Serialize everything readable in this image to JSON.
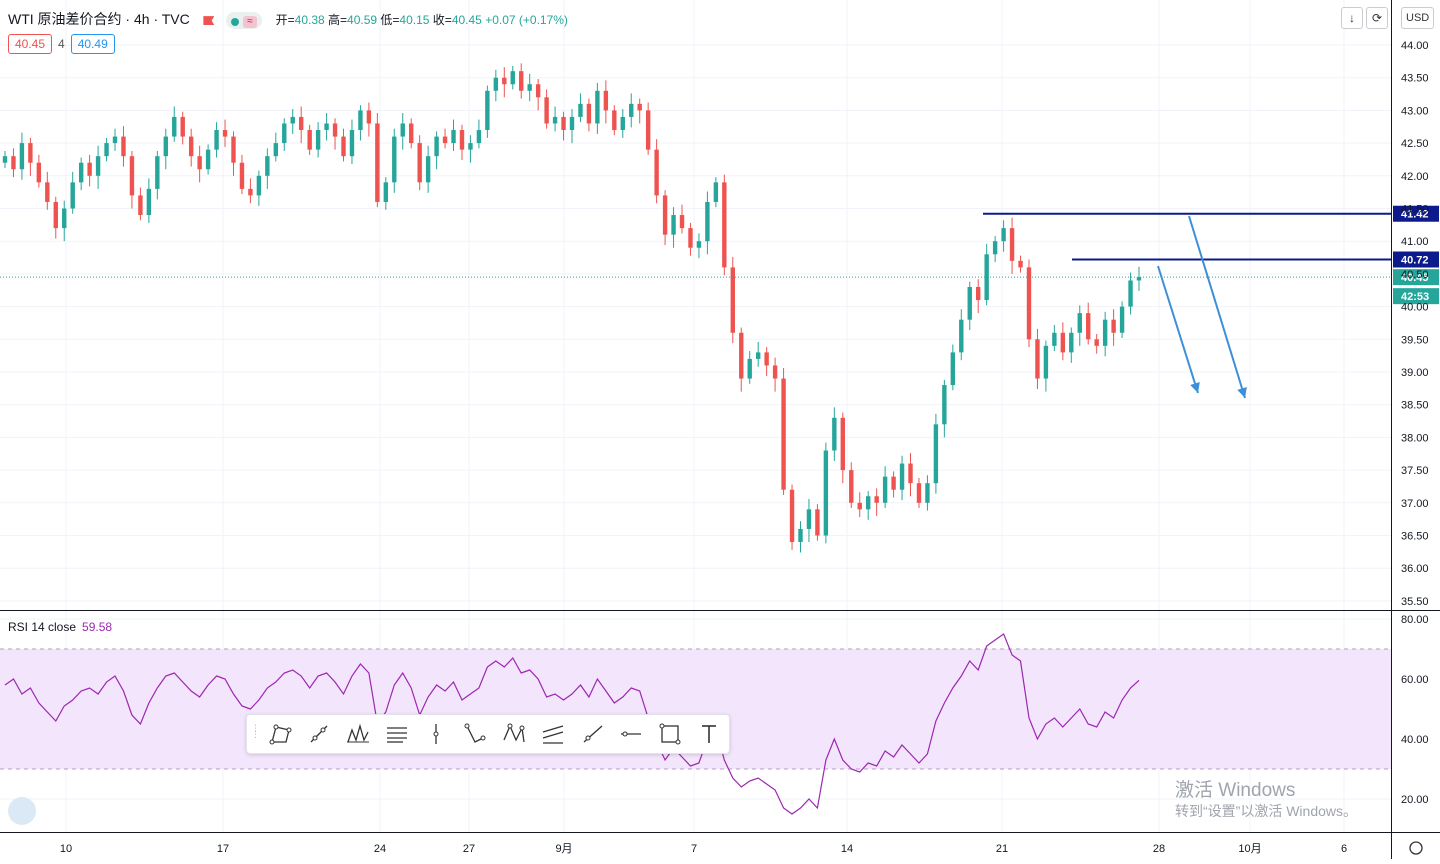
{
  "header": {
    "symbol": "WTI 原油差价合约 · 4h · TVC",
    "ohlc_open_label": "开=",
    "ohlc_open": "40.38",
    "ohlc_high_label": "高=",
    "ohlc_high": "40.59",
    "ohlc_low_label": "低=",
    "ohlc_low": "40.15",
    "ohlc_close_label": "收=",
    "ohlc_close": "40.45",
    "change": "+0.07 (+0.17%)"
  },
  "quote": {
    "bid": "40.45",
    "spread": "4",
    "ask": "40.49"
  },
  "top_buttons": {
    "down_arrow": "↓",
    "refresh": "⟳",
    "currency": "USD"
  },
  "rsi": {
    "label": "RSI 14 close",
    "value": "59.58"
  },
  "watermark": {
    "line1": "激活 Windows",
    "line2": "转到“设置”以激活 Windows。"
  },
  "tools": [
    "triangle-pattern-icon",
    "trend-line-icon",
    "pitchfork-pattern-icon",
    "fib-retracement-icon",
    "vertical-line-icon",
    "abcd-pattern-icon",
    "xabcd-pattern-icon",
    "parallel-channel-icon",
    "ray-line-icon",
    "horizontal-line-icon",
    "rectangle-icon",
    "text-tool-icon"
  ],
  "chart_data": [
    {
      "type": "candlestick",
      "title": "WTI 原油差价合约 · 4h · TVC",
      "ylim": [
        35.4,
        44.2
      ],
      "y_ticks": [
        "44.00",
        "43.50",
        "43.00",
        "42.50",
        "42.00",
        "41.50",
        "41.00",
        "40.50",
        "40.00",
        "39.50",
        "39.00",
        "38.50",
        "38.00",
        "37.50",
        "37.00",
        "36.50",
        "36.00",
        "35.50"
      ],
      "x_ticks": [
        "10",
        "17",
        "24",
        "27",
        "9月",
        "7",
        "14",
        "21",
        "28",
        "10月",
        "6"
      ],
      "closes": [
        42.3,
        42.1,
        42.5,
        42.2,
        41.9,
        41.6,
        41.2,
        41.5,
        41.9,
        42.2,
        42.0,
        42.3,
        42.5,
        42.6,
        42.3,
        41.7,
        41.4,
        41.8,
        42.3,
        42.6,
        42.9,
        42.6,
        42.3,
        42.1,
        42.4,
        42.7,
        42.6,
        42.2,
        41.8,
        41.7,
        42.0,
        42.3,
        42.5,
        42.8,
        42.9,
        42.7,
        42.4,
        42.7,
        42.8,
        42.6,
        42.3,
        42.7,
        43.0,
        42.8,
        41.6,
        41.9,
        42.6,
        42.8,
        42.5,
        41.9,
        42.3,
        42.6,
        42.5,
        42.7,
        42.4,
        42.5,
        42.7,
        43.3,
        43.5,
        43.4,
        43.6,
        43.3,
        43.4,
        43.2,
        42.8,
        42.9,
        42.7,
        42.9,
        43.1,
        42.8,
        43.3,
        43.0,
        42.7,
        42.9,
        43.1,
        43.0,
        42.4,
        41.7,
        41.1,
        41.4,
        41.2,
        40.9,
        41.0,
        41.6,
        41.9,
        40.6,
        39.6,
        38.9,
        39.2,
        39.3,
        39.1,
        38.9,
        37.2,
        36.4,
        36.6,
        36.9,
        36.5,
        37.8,
        38.3,
        37.5,
        37.0,
        36.9,
        37.1,
        37.0,
        37.4,
        37.2,
        37.6,
        37.3,
        37.0,
        37.3,
        38.2,
        38.8,
        39.3,
        39.8,
        40.3,
        40.1,
        40.8,
        41.0,
        41.2,
        40.7,
        40.6,
        39.5,
        38.9,
        39.4,
        39.6,
        39.3,
        39.6,
        39.9,
        39.5,
        39.4,
        39.8,
        39.6,
        40.0,
        40.4,
        40.45
      ]
    },
    {
      "type": "line",
      "title": "RSI 14 close",
      "ylim": [
        14,
        82
      ],
      "y_ticks": [
        "80.00",
        "60.00",
        "40.00",
        "20.00"
      ],
      "band": [
        30,
        70
      ],
      "values": [
        58,
        60,
        55,
        57,
        52,
        49,
        46,
        51,
        53,
        56,
        57,
        55,
        59,
        61,
        56,
        48,
        45,
        52,
        57,
        61,
        62,
        59,
        56,
        54,
        58,
        61,
        60,
        55,
        51,
        50,
        53,
        57,
        59,
        62,
        63,
        61,
        57,
        61,
        62,
        59,
        55,
        61,
        65,
        62,
        45,
        49,
        58,
        62,
        57,
        48,
        54,
        58,
        56,
        59,
        53,
        55,
        57,
        64,
        66,
        64,
        67,
        62,
        63,
        60,
        54,
        55,
        53,
        55,
        58,
        54,
        60,
        56,
        52,
        54,
        57,
        56,
        47,
        39,
        33,
        37,
        34,
        31,
        32,
        40,
        44,
        33,
        27,
        24,
        26,
        27,
        25,
        23,
        17,
        15,
        17,
        20,
        17,
        33,
        40,
        33,
        30,
        29,
        32,
        31,
        36,
        34,
        38,
        35,
        32,
        35,
        46,
        52,
        57,
        61,
        66,
        63,
        71,
        73,
        75,
        68,
        66,
        47,
        40,
        45,
        47,
        44,
        47,
        50,
        45,
        44,
        49,
        47,
        53,
        57,
        59.58
      ],
      "hlines": [
        {
          "label": "41.42",
          "value": 41.42,
          "color": "#0d1a8c"
        },
        {
          "label": "40.72",
          "value": 40.72,
          "color": "#0d1a8c"
        }
      ],
      "price_markers": [
        {
          "label": "40.45",
          "value": 40.45,
          "color": "#26a69a"
        },
        {
          "label": "42:53",
          "color": "#26a69a"
        }
      ]
    }
  ]
}
